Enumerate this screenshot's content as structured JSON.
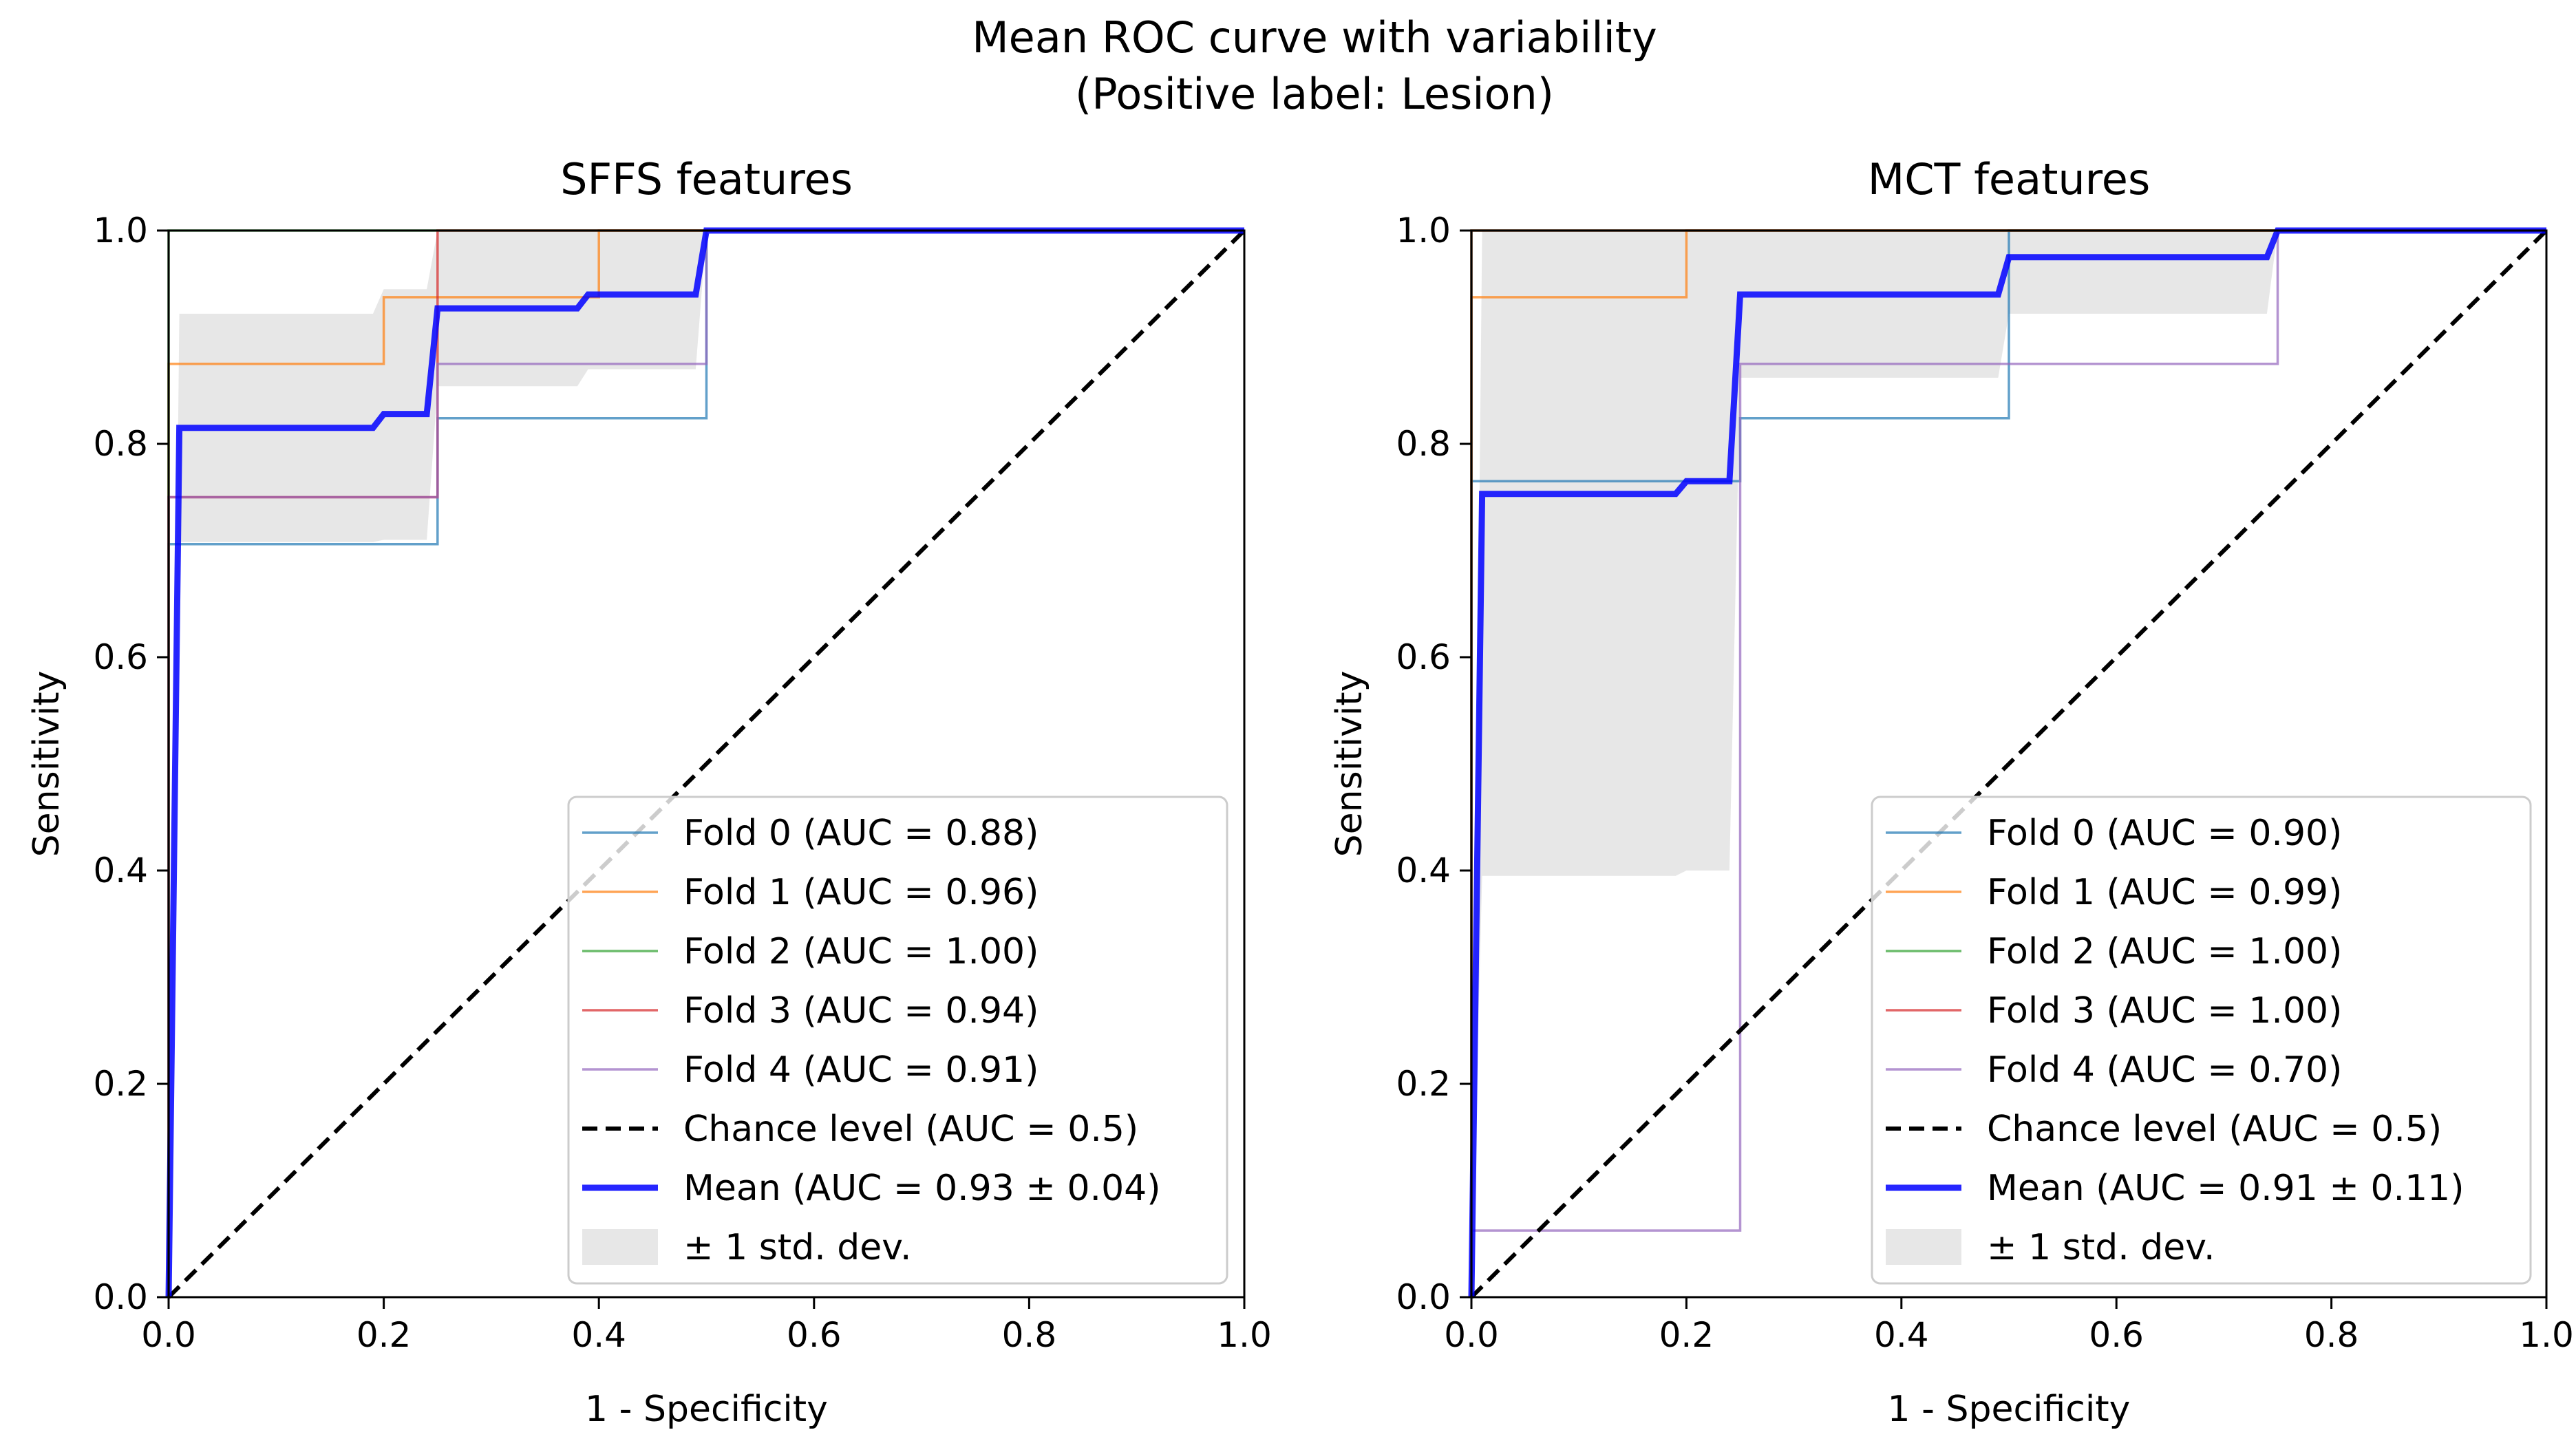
{
  "figure": {
    "title_line1": "Mean ROC curve with variability",
    "title_line2": "(Positive label: Lesion)"
  },
  "chart_data": [
    {
      "type": "line",
      "title": "SFFS features",
      "xlabel": "1 - Specificity",
      "ylabel": "Sensitivity",
      "xlim": [
        0,
        1
      ],
      "ylim": [
        0,
        1
      ],
      "xticks": [
        "0.0",
        "0.2",
        "0.4",
        "0.6",
        "0.8",
        "1.0"
      ],
      "yticks": [
        "0.0",
        "0.2",
        "0.4",
        "0.6",
        "0.8",
        "1.0"
      ],
      "grid": false,
      "legend_position": "lower-right",
      "series": [
        {
          "name": "Fold 0 (AUC = 0.88)",
          "color": "#1f77b4",
          "kind": "fold",
          "x": [
            0,
            0,
            0.25,
            0.25,
            0.5,
            0.5,
            1
          ],
          "y": [
            0,
            0.706,
            0.706,
            0.824,
            0.824,
            1,
            1
          ]
        },
        {
          "name": "Fold 1 (AUC = 0.96)",
          "color": "#ff7f0e",
          "kind": "fold",
          "x": [
            0,
            0,
            0.2,
            0.2,
            0.4,
            0.4,
            1
          ],
          "y": [
            0,
            0.875,
            0.875,
            0.9375,
            0.9375,
            1,
            1
          ]
        },
        {
          "name": "Fold 2 (AUC = 1.00)",
          "color": "#2ca02c",
          "kind": "fold",
          "x": [
            0,
            0,
            1
          ],
          "y": [
            0,
            1,
            1
          ]
        },
        {
          "name": "Fold 3 (AUC = 0.94)",
          "color": "#d62728",
          "kind": "fold",
          "x": [
            0,
            0,
            0.25,
            0.25,
            1
          ],
          "y": [
            0,
            0.75,
            0.75,
            1,
            1
          ]
        },
        {
          "name": "Fold 4 (AUC = 0.91)",
          "color": "#9467bd",
          "kind": "fold",
          "x": [
            0,
            0,
            0.25,
            0.25,
            0.5,
            0.5,
            1
          ],
          "y": [
            0,
            0.75,
            0.75,
            0.875,
            0.875,
            1,
            1
          ]
        },
        {
          "name": "Chance level (AUC = 0.5)",
          "color": "#000000",
          "kind": "chance",
          "x": [
            0,
            1
          ],
          "y": [
            0,
            1
          ]
        },
        {
          "name": "Mean (AUC = 0.93 ± 0.04)",
          "color": "#0000ff",
          "kind": "mean",
          "x": [
            0,
            0.01,
            0.19,
            0.2,
            0.24,
            0.25,
            0.38,
            0.39,
            0.49,
            0.5,
            1
          ],
          "y": [
            0,
            0.815,
            0.815,
            0.828,
            0.828,
            0.927,
            0.927,
            0.94,
            0.94,
            1,
            1
          ]
        }
      ],
      "std_band": {
        "name": "± 1 std. dev.",
        "color": "#d3d3d3",
        "x": [
          0,
          0.01,
          0.19,
          0.2,
          0.24,
          0.25,
          0.38,
          0.39,
          0.49,
          0.5,
          1
        ],
        "upper": [
          0,
          0.922,
          0.922,
          0.945,
          0.945,
          1,
          1,
          1,
          1,
          1,
          1
        ],
        "lower": [
          0,
          0.708,
          0.708,
          0.71,
          0.71,
          0.854,
          0.854,
          0.87,
          0.87,
          1,
          1
        ]
      }
    },
    {
      "type": "line",
      "title": "MCT features",
      "xlabel": "1 - Specificity",
      "ylabel": "Sensitivity",
      "xlim": [
        0,
        1
      ],
      "ylim": [
        0,
        1
      ],
      "xticks": [
        "0.0",
        "0.2",
        "0.4",
        "0.6",
        "0.8",
        "1.0"
      ],
      "yticks": [
        "0.0",
        "0.2",
        "0.4",
        "0.6",
        "0.8",
        "1.0"
      ],
      "grid": false,
      "legend_position": "lower-right",
      "series": [
        {
          "name": "Fold 0 (AUC = 0.90)",
          "color": "#1f77b4",
          "kind": "fold",
          "x": [
            0,
            0,
            0.25,
            0.25,
            0.5,
            0.5,
            1
          ],
          "y": [
            0,
            0.765,
            0.765,
            0.824,
            0.824,
            1,
            1
          ]
        },
        {
          "name": "Fold 1 (AUC = 0.99)",
          "color": "#ff7f0e",
          "kind": "fold",
          "x": [
            0,
            0,
            0.2,
            0.2,
            1
          ],
          "y": [
            0,
            0.9375,
            0.9375,
            1,
            1
          ]
        },
        {
          "name": "Fold 2 (AUC = 1.00)",
          "color": "#2ca02c",
          "kind": "fold",
          "x": [
            0,
            0,
            1
          ],
          "y": [
            0,
            1,
            1
          ]
        },
        {
          "name": "Fold 3 (AUC = 1.00)",
          "color": "#d62728",
          "kind": "fold",
          "x": [
            0,
            0,
            1
          ],
          "y": [
            0,
            1,
            1
          ]
        },
        {
          "name": "Fold 4 (AUC = 0.70)",
          "color": "#9467bd",
          "kind": "fold",
          "x": [
            0,
            0,
            0.25,
            0.25,
            0.75,
            0.75,
            1
          ],
          "y": [
            0,
            0.0625,
            0.0625,
            0.875,
            0.875,
            1,
            1
          ]
        },
        {
          "name": "Chance level (AUC = 0.5)",
          "color": "#000000",
          "kind": "chance",
          "x": [
            0,
            1
          ],
          "y": [
            0,
            1
          ]
        },
        {
          "name": "Mean (AUC = 0.91 ± 0.11)",
          "color": "#0000ff",
          "kind": "mean",
          "x": [
            0,
            0.01,
            0.19,
            0.2,
            0.24,
            0.25,
            0.49,
            0.5,
            0.74,
            0.75,
            1
          ],
          "y": [
            0,
            0.753,
            0.753,
            0.765,
            0.765,
            0.94,
            0.94,
            0.975,
            0.975,
            1,
            1
          ]
        }
      ],
      "std_band": {
        "name": "± 1 std. dev.",
        "color": "#d3d3d3",
        "x": [
          0,
          0.01,
          0.19,
          0.2,
          0.24,
          0.25,
          0.49,
          0.5,
          0.74,
          0.75,
          1
        ],
        "upper": [
          0,
          1,
          1,
          1,
          1,
          1,
          1,
          1,
          1,
          1,
          1
        ],
        "lower": [
          0,
          0.395,
          0.395,
          0.4,
          0.4,
          0.862,
          0.862,
          0.922,
          0.922,
          1,
          1
        ]
      }
    }
  ]
}
